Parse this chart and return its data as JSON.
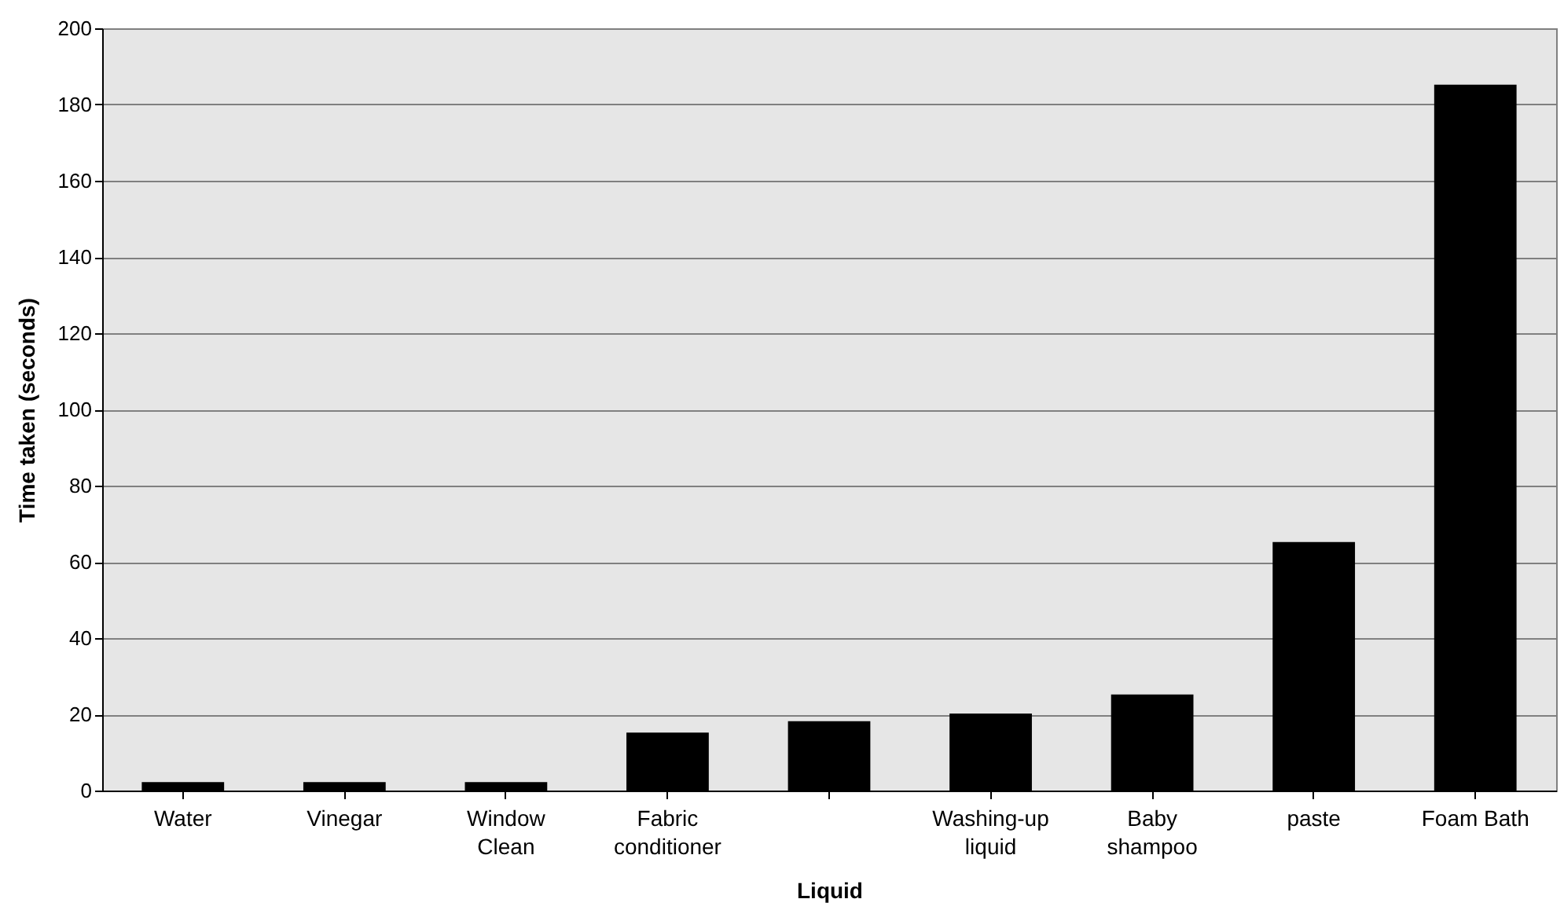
{
  "chart_data": {
    "type": "bar",
    "xlabel": "Liquid",
    "ylabel": "Time taken (seconds)",
    "categories": [
      "Water",
      "Vinegar",
      "Window\nClean",
      "Fabric\nconditioner",
      null,
      "Washing-up\nliquid",
      "Baby\nshampoo",
      "paste",
      "Foam Bath"
    ],
    "values": [
      2,
      2,
      2,
      15,
      18,
      20,
      25,
      65,
      185
    ],
    "color": "#000000",
    "ylim": [
      0,
      200
    ],
    "yticks": [
      0,
      20,
      40,
      60,
      80,
      100,
      120,
      140,
      160,
      180,
      200
    ],
    "grid": "y"
  }
}
